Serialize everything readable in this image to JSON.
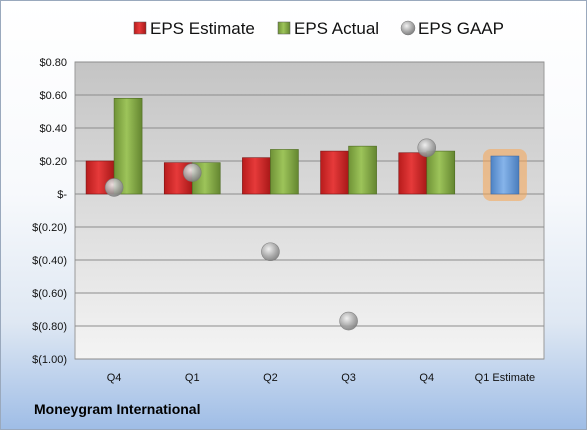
{
  "company": "Moneygram International",
  "chart_data": {
    "type": "bar",
    "categories": [
      "Q4",
      "Q1",
      "Q2",
      "Q3",
      "Q4",
      "Q1 Estimate"
    ],
    "series": [
      {
        "name": "EPS Estimate",
        "color": "#d42b2b",
        "values": [
          0.2,
          0.19,
          0.22,
          0.26,
          0.25,
          null
        ]
      },
      {
        "name": "EPS Actual",
        "color": "#8db34a",
        "values": [
          0.58,
          0.19,
          0.27,
          0.29,
          0.26,
          null
        ]
      },
      {
        "name": "EPS GAAP",
        "color": "#a9a9a9",
        "kind": "marker",
        "values": [
          0.04,
          0.13,
          -0.35,
          -0.77,
          0.28,
          null
        ]
      },
      {
        "name": "",
        "color": "#6fa1dc",
        "highlight": "#f7a553",
        "values": [
          null,
          null,
          null,
          null,
          null,
          0.23
        ]
      }
    ],
    "ylim": [
      -1.0,
      0.8
    ],
    "yticks": [
      0.8,
      0.6,
      0.4,
      0.2,
      0,
      -0.2,
      -0.4,
      -0.6,
      -0.8,
      -1.0
    ],
    "ytick_labels": [
      "$0.80",
      "$0.60",
      "$0.40",
      "$0.20",
      "$-",
      "$(0.20)",
      "$(0.40)",
      "$(0.60)",
      "$(0.80)",
      "$(1.00)"
    ],
    "grid": true,
    "legend_position": "top"
  }
}
